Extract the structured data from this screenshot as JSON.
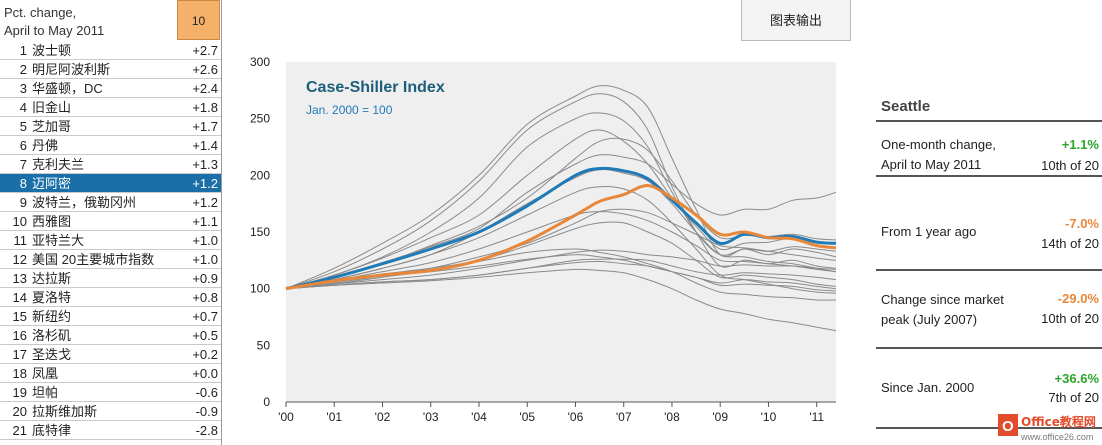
{
  "left_panel": {
    "header_label_line1": "Pct. change,",
    "header_label_line2": "April to May 2011",
    "header_value": "10",
    "rows": [
      {
        "rank": "1",
        "name": "波士顿",
        "value": "+2.7"
      },
      {
        "rank": "2",
        "name": "明尼阿波利斯",
        "value": "+2.6"
      },
      {
        "rank": "3",
        "name": "华盛顿，DC",
        "value": "+2.4"
      },
      {
        "rank": "4",
        "name": "旧金山",
        "value": "+1.8"
      },
      {
        "rank": "5",
        "name": "芝加哥",
        "value": "+1.7"
      },
      {
        "rank": "6",
        "name": "丹佛",
        "value": "+1.4"
      },
      {
        "rank": "7",
        "name": "克利夫兰",
        "value": "+1.3"
      },
      {
        "rank": "8",
        "name": "迈阿密",
        "value": "+1.2"
      },
      {
        "rank": "9",
        "name": "波特兰，俄勒冈州",
        "value": "+1.2"
      },
      {
        "rank": "10",
        "name": "西雅图",
        "value": "+1.1"
      },
      {
        "rank": "11",
        "name": "亚特兰大",
        "value": "+1.0"
      },
      {
        "rank": "12",
        "name": "美国 20主要城市指数",
        "value": "+1.0"
      },
      {
        "rank": "13",
        "name": "达拉斯",
        "value": "+0.9"
      },
      {
        "rank": "14",
        "name": "夏洛特",
        "value": "+0.8"
      },
      {
        "rank": "15",
        "name": "新纽约",
        "value": "+0.7"
      },
      {
        "rank": "16",
        "name": "洛杉矶",
        "value": "+0.5"
      },
      {
        "rank": "17",
        "name": "圣迭戈",
        "value": "+0.2"
      },
      {
        "rank": "18",
        "name": "凤凰",
        "value": "+0.0"
      },
      {
        "rank": "19",
        "name": "坦帕",
        "value": "-0.6"
      },
      {
        "rank": "20",
        "name": "拉斯维加斯",
        "value": "-0.9"
      },
      {
        "rank": "21",
        "name": "底特律",
        "value": "-2.8"
      }
    ],
    "selected_rank": "8"
  },
  "toolbar": {
    "export_label": "图表输出"
  },
  "chart_data": {
    "type": "line",
    "title": "Case-Shiller Index",
    "subtitle": "Jan. 2000 = 100",
    "xlabel": "",
    "ylabel": "",
    "x_tick_labels": [
      "'00",
      "'01",
      "'02",
      "'03",
      "'04",
      "'05",
      "'06",
      "'07",
      "'08",
      "'09",
      "'10",
      "'11"
    ],
    "y_ticks": [
      0,
      50,
      100,
      150,
      200,
      250,
      300
    ],
    "xlim": [
      2000,
      2011.4
    ],
    "ylim": [
      0,
      300
    ],
    "grid": false,
    "colors": {
      "highlight_blue": "#1f7ab8",
      "highlight_orange": "#e8873a",
      "background_lines": "#8a8a8a",
      "plot_bg": "#efefef"
    },
    "x": [
      2000,
      2001,
      2002,
      2003,
      2004,
      2005,
      2006,
      2006.5,
      2007,
      2007.5,
      2008,
      2008.5,
      2009,
      2009.5,
      2010,
      2010.5,
      2011,
      2011.4
    ],
    "highlight_series": [
      {
        "name": "Composite-20",
        "color": "blue",
        "values": [
          100,
          110,
          122,
          135,
          150,
          173,
          200,
          206,
          204,
          197,
          178,
          158,
          140,
          148,
          145,
          146,
          141,
          140
        ]
      },
      {
        "name": "Seattle",
        "color": "orange",
        "values": [
          100,
          107,
          112,
          116,
          125,
          142,
          165,
          177,
          183,
          191,
          180,
          165,
          148,
          150,
          145,
          144,
          138,
          136
        ]
      }
    ],
    "background_series": [
      [
        100,
        118,
        140,
        165,
        200,
        245,
        270,
        279,
        275,
        260,
        215,
        170,
        130,
        135,
        130,
        135,
        132,
        128
      ],
      [
        100,
        115,
        135,
        160,
        195,
        240,
        265,
        272,
        265,
        240,
        190,
        150,
        120,
        125,
        122,
        125,
        120,
        118
      ],
      [
        100,
        112,
        128,
        150,
        180,
        225,
        250,
        255,
        248,
        225,
        185,
        150,
        130,
        135,
        133,
        137,
        135,
        133
      ],
      [
        100,
        112,
        127,
        145,
        165,
        200,
        232,
        240,
        230,
        210,
        180,
        155,
        135,
        140,
        141,
        145,
        142,
        140
      ],
      [
        100,
        110,
        122,
        138,
        155,
        180,
        215,
        230,
        232,
        222,
        195,
        165,
        145,
        147,
        146,
        148,
        144,
        143
      ],
      [
        100,
        108,
        118,
        130,
        150,
        175,
        198,
        205,
        202,
        195,
        175,
        150,
        130,
        128,
        124,
        122,
        118,
        115
      ],
      [
        100,
        110,
        123,
        137,
        153,
        185,
        210,
        218,
        216,
        210,
        192,
        175,
        165,
        170,
        170,
        178,
        180,
        185
      ],
      [
        100,
        108,
        118,
        130,
        145,
        165,
        185,
        190,
        188,
        178,
        158,
        135,
        112,
        108,
        104,
        100,
        97,
        96
      ],
      [
        100,
        107,
        115,
        123,
        135,
        150,
        165,
        168,
        166,
        160,
        150,
        138,
        125,
        124,
        122,
        120,
        117,
        115
      ],
      [
        100,
        106,
        112,
        118,
        128,
        140,
        158,
        168,
        170,
        167,
        158,
        148,
        138,
        136,
        133,
        130,
        127,
        125
      ],
      [
        100,
        107,
        113,
        118,
        125,
        138,
        153,
        158,
        158,
        150,
        140,
        125,
        110,
        112,
        110,
        108,
        104,
        102
      ],
      [
        100,
        104,
        108,
        112,
        118,
        125,
        132,
        134,
        133,
        130,
        128,
        125,
        120,
        121,
        120,
        120,
        118,
        117
      ],
      [
        100,
        103,
        106,
        108,
        112,
        118,
        125,
        126,
        126,
        125,
        120,
        115,
        112,
        114,
        113,
        112,
        110,
        108
      ],
      [
        100,
        105,
        111,
        115,
        120,
        126,
        130,
        128,
        125,
        120,
        115,
        110,
        105,
        108,
        106,
        105,
        102,
        100
      ],
      [
        100,
        103,
        106,
        108,
        112,
        118,
        123,
        124,
        122,
        120,
        115,
        110,
        103,
        104,
        103,
        102,
        99,
        98
      ],
      [
        100,
        104,
        110,
        116,
        124,
        132,
        135,
        132,
        128,
        122,
        115,
        105,
        97,
        95,
        93,
        92,
        90,
        90
      ],
      [
        100,
        103,
        105,
        107,
        110,
        114,
        117,
        116,
        114,
        108,
        100,
        90,
        82,
        78,
        73,
        70,
        66,
        63
      ]
    ]
  },
  "right_panel": {
    "city": "Seattle",
    "stats": [
      {
        "label_line1": "One-month change,",
        "label_line2": "April to May 2011",
        "change": "+1.1%",
        "change_color": "#2aa52a",
        "rank": "10th of 20"
      },
      {
        "label_line1": "From 1 year ago",
        "label_line2": "",
        "change": "-7.0%",
        "change_color": "#e8873a",
        "rank": "14th of 20"
      },
      {
        "label_line1": "Change since market",
        "label_line2": "peak (July 2007)",
        "change": "-29.0%",
        "change_color": "#e8873a",
        "rank": "10th of 20"
      },
      {
        "label_line1": "Since Jan. 2000",
        "label_line2": "",
        "change": "+36.6%",
        "change_color": "#2aa52a",
        "rank": "7th of 20"
      }
    ]
  },
  "watermark": {
    "brand": "Office教程网",
    "url": "www.office26.com"
  }
}
